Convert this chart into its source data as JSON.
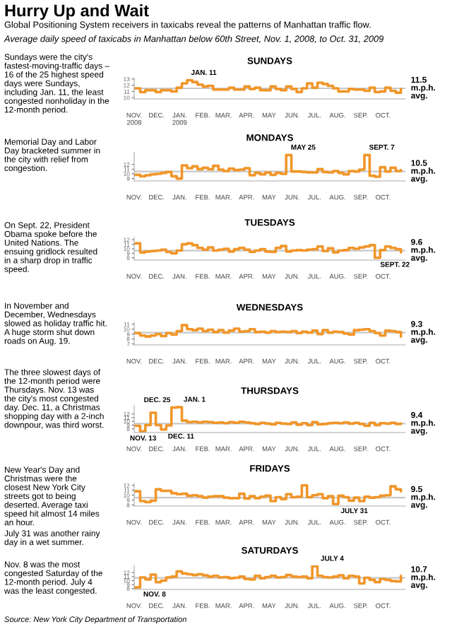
{
  "chart_data": [
    {
      "type": "other",
      "title": "Hurry Up and Wait",
      "subtitle": "Global Positioning System receivers in taxicabs reveal the patterns of Manhattan traffic flow.",
      "annotations": [
        "Average daily speed of taxicabs in Manhattan below 60th Street, Nov. 1, 2008, to Oct. 31, 2009",
        "Source: New York City Department of Transportation"
      ]
    },
    {
      "type": "step",
      "title": "SUNDAYS",
      "xlim": [
        "2008-11-01",
        "2009-10-31"
      ],
      "ylim": [
        9.8,
        13.2
      ],
      "yticks": [
        10,
        11,
        12,
        13
      ],
      "xticks": [
        {
          "value": "2008-11-01",
          "label": "NOV.\n2008"
        },
        {
          "value": "2008-12-01",
          "label": "DEC."
        },
        {
          "value": "2009-01-01",
          "label": "JAN.\n2009"
        },
        {
          "value": "2009-02-01",
          "label": "FEB."
        },
        {
          "value": "2009-03-01",
          "label": "MAR."
        },
        {
          "value": "2009-04-01",
          "label": "APR."
        },
        {
          "value": "2009-05-01",
          "label": "MAY"
        },
        {
          "value": "2009-06-01",
          "label": "JUN."
        },
        {
          "value": "2009-07-01",
          "label": "JUL."
        },
        {
          "value": "2009-08-01",
          "label": "AUG."
        },
        {
          "value": "2009-09-01",
          "label": "SEP."
        },
        {
          "value": "2009-10-01",
          "label": "OCT."
        }
      ],
      "x": [
        "2008-11-02",
        "2008-11-09",
        "2008-11-16",
        "2008-11-23",
        "2008-11-30",
        "2008-12-07",
        "2008-12-14",
        "2008-12-21",
        "2008-12-28",
        "2009-01-04",
        "2009-01-11",
        "2009-01-18",
        "2009-01-25",
        "2009-02-01",
        "2009-02-08",
        "2009-02-15",
        "2009-02-22",
        "2009-03-01",
        "2009-03-08",
        "2009-03-15",
        "2009-03-22",
        "2009-03-29",
        "2009-04-05",
        "2009-04-12",
        "2009-04-19",
        "2009-04-26",
        "2009-05-03",
        "2009-05-10",
        "2009-05-17",
        "2009-05-24",
        "2009-05-31",
        "2009-06-07",
        "2009-06-14",
        "2009-06-21",
        "2009-06-28",
        "2009-07-05",
        "2009-07-12",
        "2009-07-19",
        "2009-07-26",
        "2009-08-02",
        "2009-08-09",
        "2009-08-16",
        "2009-08-23",
        "2009-08-30",
        "2009-09-06",
        "2009-09-13",
        "2009-09-20",
        "2009-09-27",
        "2009-10-04",
        "2009-10-11",
        "2009-10-18",
        "2009-10-25"
      ],
      "series": [
        {
          "color": "#f0962a",
          "values": [
            11.5,
            10.9,
            11.2,
            11.2,
            10.9,
            11.2,
            11.2,
            11.0,
            11.6,
            12.3,
            12.8,
            12.5,
            12.1,
            11.8,
            11.9,
            11.3,
            11.3,
            11.3,
            11.6,
            11.3,
            11.3,
            11.8,
            11.4,
            11.6,
            11.2,
            11.2,
            11.8,
            11.4,
            11.2,
            11.8,
            11.4,
            10.9,
            11.5,
            12.3,
            11.6,
            12.4,
            12.2,
            11.9,
            11.5,
            11.0,
            11.0,
            11.4,
            11.3,
            11.3,
            11.1,
            11.6,
            10.9,
            11.0,
            11.6,
            11.1,
            10.8,
            11.4
          ]
        }
      ],
      "ref_lines": [
        {
          "axis": "y",
          "value": 11.5,
          "label": "11.5\nm.p.h.\navg.",
          "color": "#c8c8c8"
        }
      ],
      "annotations": [
        {
          "text": "JAN. 11",
          "x": "2009-01-11",
          "y": 12.8
        },
        "Sundays were the city's\nfastest-moving-traffic days –\n16 of the 25 highest speed\ndays were Sundays,\nincluding Jan. 11, the least\ncongested nonholiday in the\n12-month period."
      ]
    },
    {
      "type": "step",
      "title": "MONDAYS",
      "xlim": [
        "2008-11-01",
        "2009-10-31"
      ],
      "ylim": [
        8.5,
        14.5
      ],
      "yticks": [
        9,
        10,
        11,
        12
      ],
      "xticks": [
        {
          "value": "2008-11-01",
          "label": "NOV."
        },
        {
          "value": "2008-12-01",
          "label": "DEC."
        },
        {
          "value": "2009-01-01",
          "label": "JAN."
        },
        {
          "value": "2009-02-01",
          "label": "FEB."
        },
        {
          "value": "2009-03-01",
          "label": "MAR."
        },
        {
          "value": "2009-04-01",
          "label": "APR."
        },
        {
          "value": "2009-05-01",
          "label": "MAY"
        },
        {
          "value": "2009-06-01",
          "label": "JUN."
        },
        {
          "value": "2009-07-01",
          "label": "JUL."
        },
        {
          "value": "2009-08-01",
          "label": "AUG."
        },
        {
          "value": "2009-09-01",
          "label": "SEP."
        },
        {
          "value": "2009-10-01",
          "label": "OCT."
        }
      ],
      "x": [
        "2008-11-02",
        "2008-11-09",
        "2008-11-16",
        "2008-11-23",
        "2008-11-30",
        "2008-12-07",
        "2008-12-14",
        "2008-12-21",
        "2008-12-28",
        "2009-01-04",
        "2009-01-11",
        "2009-01-18",
        "2009-01-25",
        "2009-02-01",
        "2009-02-08",
        "2009-02-15",
        "2009-02-22",
        "2009-03-01",
        "2009-03-08",
        "2009-03-15",
        "2009-03-22",
        "2009-03-29",
        "2009-04-05",
        "2009-04-12",
        "2009-04-19",
        "2009-04-26",
        "2009-05-03",
        "2009-05-10",
        "2009-05-17",
        "2009-05-24",
        "2009-05-31",
        "2009-06-07",
        "2009-06-14",
        "2009-06-21",
        "2009-06-28",
        "2009-07-05",
        "2009-07-12",
        "2009-07-19",
        "2009-07-26",
        "2009-08-02",
        "2009-08-09",
        "2009-08-16",
        "2009-08-23",
        "2009-08-30",
        "2009-09-06",
        "2009-09-13",
        "2009-09-20",
        "2009-09-27",
        "2009-10-04",
        "2009-10-11",
        "2009-10-18",
        "2009-10-25"
      ],
      "series": [
        {
          "color": "#f0962a",
          "values": [
            9.8,
            9.5,
            9.7,
            9.9,
            10.0,
            10.2,
            10.4,
            9.5,
            9.0,
            11.8,
            11.2,
            11.6,
            11.0,
            11.3,
            11.0,
            11.7,
            10.9,
            10.6,
            11.1,
            10.8,
            10.9,
            11.2,
            9.7,
            10.2,
            9.9,
            10.3,
            9.8,
            10.2,
            10.0,
            14.0,
            10.5,
            10.5,
            10.4,
            10.3,
            10.3,
            11.0,
            10.4,
            10.3,
            10.6,
            10.2,
            9.9,
            10.6,
            10.5,
            10.9,
            14.0,
            9.6,
            9.4,
            11.4,
            10.5,
            11.3,
            10.6,
            10.8
          ]
        }
      ],
      "ref_lines": [
        {
          "axis": "y",
          "value": 10.5,
          "label": "10.5\nm.p.h.\navg.",
          "color": "#c8c8c8"
        }
      ],
      "annotations": [
        {
          "text": "MAY 25",
          "x": "2009-05-25",
          "y": 14.0
        },
        {
          "text": "SEPT. 7",
          "x": "2009-09-07",
          "y": 14.0
        },
        "Memorial Day and Labor\nDay bracketed summer in\nthe city with relief from\ncongestion."
      ]
    },
    {
      "type": "step",
      "title": "TUESDAYS",
      "xlim": [
        "2008-11-01",
        "2009-10-31"
      ],
      "ylim": [
        7.5,
        12.5
      ],
      "yticks": [
        8,
        9,
        10,
        11,
        12
      ],
      "xticks": [
        {
          "value": "2008-11-01",
          "label": "NOV."
        },
        {
          "value": "2008-12-01",
          "label": "DEC."
        },
        {
          "value": "2009-01-01",
          "label": "JAN."
        },
        {
          "value": "2009-02-01",
          "label": "FEB."
        },
        {
          "value": "2009-03-01",
          "label": "MAR."
        },
        {
          "value": "2009-04-01",
          "label": "APR."
        },
        {
          "value": "2009-05-01",
          "label": "MAY"
        },
        {
          "value": "2009-06-01",
          "label": "JUN."
        },
        {
          "value": "2009-07-01",
          "label": "JUL."
        },
        {
          "value": "2009-08-01",
          "label": "AUG."
        },
        {
          "value": "2009-09-01",
          "label": "SEP."
        },
        {
          "value": "2009-10-01",
          "label": "OCT."
        }
      ],
      "x": [
        "2008-11-02",
        "2008-11-09",
        "2008-11-16",
        "2008-11-23",
        "2008-11-30",
        "2008-12-07",
        "2008-12-14",
        "2008-12-21",
        "2008-12-28",
        "2009-01-04",
        "2009-01-11",
        "2009-01-18",
        "2009-01-25",
        "2009-02-01",
        "2009-02-08",
        "2009-02-15",
        "2009-02-22",
        "2009-03-01",
        "2009-03-08",
        "2009-03-15",
        "2009-03-22",
        "2009-03-29",
        "2009-04-05",
        "2009-04-12",
        "2009-04-19",
        "2009-04-26",
        "2009-05-03",
        "2009-05-10",
        "2009-05-17",
        "2009-05-24",
        "2009-05-31",
        "2009-06-07",
        "2009-06-14",
        "2009-06-21",
        "2009-06-28",
        "2009-07-05",
        "2009-07-12",
        "2009-07-19",
        "2009-07-26",
        "2009-08-02",
        "2009-08-09",
        "2009-08-16",
        "2009-08-23",
        "2009-08-30",
        "2009-09-06",
        "2009-09-13",
        "2009-09-20",
        "2009-09-27",
        "2009-10-04",
        "2009-10-11",
        "2009-10-18",
        "2009-10-25"
      ],
      "series": [
        {
          "color": "#f0962a",
          "values": [
            11.2,
            9.2,
            9.4,
            9.5,
            9.6,
            9.8,
            9.3,
            9.0,
            9.6,
            11.0,
            11.2,
            10.8,
            10.2,
            9.8,
            10.3,
            9.6,
            9.8,
            10.0,
            9.4,
            9.9,
            10.2,
            9.8,
            9.3,
            9.6,
            9.9,
            9.4,
            9.3,
            10.2,
            10.6,
            9.4,
            9.6,
            9.7,
            9.6,
            9.8,
            9.9,
            10.5,
            9.5,
            10.1,
            9.2,
            9.6,
            9.7,
            10.2,
            10.0,
            10.3,
            10.5,
            10.8,
            8.0,
            9.7,
            10.5,
            10.2,
            9.9,
            9.2
          ]
        }
      ],
      "ref_lines": [
        {
          "axis": "y",
          "value": 9.6,
          "label": "9.6\nm.p.h.\navg.",
          "color": "#c8c8c8"
        }
      ],
      "annotations": [
        {
          "text": "SEPT. 22",
          "x": "2009-09-22",
          "y": 8.0
        },
        "On Sept. 22, President\nObama spoke before the\nUnited Nations. The\nensuing gridlock resulted\nin a sharp drop in traffic\nspeed."
      ]
    },
    {
      "type": "step",
      "title": "WEDNESDAYS",
      "xlim": [
        "2008-11-01",
        "2009-10-31"
      ],
      "ylim": [
        6.8,
        11.4
      ],
      "yticks": [
        7,
        8,
        9,
        10,
        11
      ],
      "xticks": [
        {
          "value": "2008-11-01",
          "label": "NOV."
        },
        {
          "value": "2008-12-01",
          "label": "DEC."
        },
        {
          "value": "2009-01-01",
          "label": "JAN."
        },
        {
          "value": "2009-02-01",
          "label": "FEB."
        },
        {
          "value": "2009-03-01",
          "label": "MAR."
        },
        {
          "value": "2009-04-01",
          "label": "APR."
        },
        {
          "value": "2009-05-01",
          "label": "MAY"
        },
        {
          "value": "2009-06-01",
          "label": "JUN."
        },
        {
          "value": "2009-07-01",
          "label": "JUL."
        },
        {
          "value": "2009-08-01",
          "label": "AUG."
        },
        {
          "value": "2009-09-01",
          "label": "SEP."
        },
        {
          "value": "2009-10-01",
          "label": "OCT."
        }
      ],
      "x": [
        "2008-11-02",
        "2008-11-09",
        "2008-11-16",
        "2008-11-23",
        "2008-11-30",
        "2008-12-07",
        "2008-12-14",
        "2008-12-21",
        "2008-12-28",
        "2009-01-04",
        "2009-01-11",
        "2009-01-18",
        "2009-01-25",
        "2009-02-01",
        "2009-02-08",
        "2009-02-15",
        "2009-02-22",
        "2009-03-01",
        "2009-03-08",
        "2009-03-15",
        "2009-03-22",
        "2009-03-29",
        "2009-04-05",
        "2009-04-12",
        "2009-04-19",
        "2009-04-26",
        "2009-05-03",
        "2009-05-10",
        "2009-05-17",
        "2009-05-24",
        "2009-05-31",
        "2009-06-07",
        "2009-06-14",
        "2009-06-21",
        "2009-06-28",
        "2009-07-05",
        "2009-07-12",
        "2009-07-19",
        "2009-07-26",
        "2009-08-02",
        "2009-08-09",
        "2009-08-16",
        "2009-08-23",
        "2009-08-30",
        "2009-09-06",
        "2009-09-13",
        "2009-09-20",
        "2009-09-27",
        "2009-10-04",
        "2009-10-11",
        "2009-10-18",
        "2009-10-25"
      ],
      "series": [
        {
          "color": "#f0962a",
          "values": [
            9.2,
            8.7,
            8.5,
            8.7,
            9.0,
            8.6,
            9.2,
            8.9,
            9.6,
            10.8,
            10.0,
            9.8,
            10.1,
            9.6,
            9.9,
            9.4,
            9.8,
            9.3,
            9.7,
            10.1,
            9.5,
            9.6,
            10.0,
            9.4,
            9.5,
            9.3,
            9.6,
            9.4,
            9.5,
            9.4,
            9.6,
            9.2,
            9.5,
            9.3,
            9.7,
            9.0,
            9.8,
            9.3,
            9.5,
            9.4,
            9.1,
            8.9,
            9.8,
            9.9,
            10.0,
            9.6,
            9.2,
            8.7,
            9.7,
            9.6,
            9.4,
            8.5
          ]
        }
      ],
      "ref_lines": [
        {
          "axis": "y",
          "value": 9.3,
          "label": "9.3\nm.p.h.\navg.",
          "color": "#c8c8c8"
        }
      ],
      "annotations": [
        "In November and\nDecember, Wednesdays\nslowed as holiday traffic hit.\nA huge storm shut down\nroads on Aug. 19."
      ]
    },
    {
      "type": "step",
      "title": "THURSDAYS",
      "xlim": [
        "2008-11-01",
        "2009-10-31"
      ],
      "ylim": [
        7.0,
        14.2
      ],
      "yticks": [
        8,
        9,
        10,
        11,
        12
      ],
      "xticks": [
        {
          "value": "2008-11-01",
          "label": "NOV."
        },
        {
          "value": "2008-12-01",
          "label": "DEC."
        },
        {
          "value": "2009-01-01",
          "label": "JAN."
        },
        {
          "value": "2009-02-01",
          "label": "FEB."
        },
        {
          "value": "2009-03-01",
          "label": "MAR."
        },
        {
          "value": "2009-04-01",
          "label": "APR."
        },
        {
          "value": "2009-05-01",
          "label": "MAY"
        },
        {
          "value": "2009-06-01",
          "label": "JUN."
        },
        {
          "value": "2009-07-01",
          "label": "JUL."
        },
        {
          "value": "2009-08-01",
          "label": "AUG."
        },
        {
          "value": "2009-09-01",
          "label": "SEP."
        },
        {
          "value": "2009-10-01",
          "label": "OCT."
        }
      ],
      "x": [
        "2008-11-02",
        "2008-11-09",
        "2008-11-16",
        "2008-11-23",
        "2008-11-30",
        "2008-12-07",
        "2008-12-14",
        "2008-12-21",
        "2008-12-28",
        "2009-01-04",
        "2009-01-11",
        "2009-01-18",
        "2009-01-25",
        "2009-02-01",
        "2009-02-08",
        "2009-02-15",
        "2009-02-22",
        "2009-03-01",
        "2009-03-08",
        "2009-03-15",
        "2009-03-22",
        "2009-03-29",
        "2009-04-05",
        "2009-04-12",
        "2009-04-19",
        "2009-04-26",
        "2009-05-03",
        "2009-05-10",
        "2009-05-17",
        "2009-05-24",
        "2009-05-31",
        "2009-06-07",
        "2009-06-14",
        "2009-06-21",
        "2009-06-28",
        "2009-07-05",
        "2009-07-12",
        "2009-07-19",
        "2009-07-26",
        "2009-08-02",
        "2009-08-09",
        "2009-08-16",
        "2009-08-23",
        "2009-08-30",
        "2009-09-06",
        "2009-09-13",
        "2009-09-20",
        "2009-09-27",
        "2009-10-04",
        "2009-10-11",
        "2009-10-18",
        "2009-10-25"
      ],
      "series": [
        {
          "color": "#f0962a",
          "values": [
            8.8,
            7.3,
            9.0,
            12.3,
            9.0,
            7.8,
            8.9,
            13.7,
            13.8,
            10.2,
            9.8,
            9.9,
            9.7,
            9.9,
            9.8,
            9.6,
            9.7,
            9.5,
            9.8,
            9.6,
            9.9,
            9.7,
            9.5,
            9.3,
            9.6,
            9.4,
            9.2,
            9.6,
            9.4,
            9.3,
            9.7,
            9.1,
            9.5,
            9.0,
            9.8,
            9.2,
            9.3,
            9.5,
            9.6,
            9.5,
            9.7,
            9.4,
            9.6,
            9.3,
            8.8,
            9.6,
            9.0,
            9.5,
            9.4,
            9.6,
            9.3,
            9.4
          ]
        }
      ],
      "ref_lines": [
        {
          "axis": "y",
          "value": 9.4,
          "label": "9.4\nm.p.h.\navg.",
          "color": "#c8c8c8"
        }
      ],
      "annotations": [
        {
          "text": "DEC. 25",
          "x": "2008-12-25",
          "y": 13.7
        },
        {
          "text": "JAN. 1",
          "x": "2009-01-01",
          "y": 13.8
        },
        {
          "text": "NOV. 13",
          "x": "2008-11-13",
          "y": 7.3
        },
        {
          "text": "DEC. 11",
          "x": "2008-12-11",
          "y": 7.8
        },
        "The three slowest days of\nthe 12-month period were\nThursdays. Nov. 13 was\nthe city's most congested\nday. Dec. 11, a Christmas\nshopping day with a 2-inch\ndownpour, was third worst."
      ]
    },
    {
      "type": "step",
      "title": "FRIDAYS",
      "xlim": [
        "2008-11-01",
        "2009-10-31"
      ],
      "ylim": [
        7.8,
        12.4
      ],
      "yticks": [
        8,
        9,
        10,
        11,
        12
      ],
      "xticks": [
        {
          "value": "2008-11-01",
          "label": "NOV."
        },
        {
          "value": "2008-12-01",
          "label": "DEC."
        },
        {
          "value": "2009-01-01",
          "label": "JAN."
        },
        {
          "value": "2009-02-01",
          "label": "FEB."
        },
        {
          "value": "2009-03-01",
          "label": "MAR."
        },
        {
          "value": "2009-04-01",
          "label": "APR."
        },
        {
          "value": "2009-05-01",
          "label": "MAY"
        },
        {
          "value": "2009-06-01",
          "label": "JUN."
        },
        {
          "value": "2009-07-01",
          "label": "JUL."
        },
        {
          "value": "2009-08-01",
          "label": "AUG."
        },
        {
          "value": "2009-09-01",
          "label": "SEP."
        },
        {
          "value": "2009-10-01",
          "label": "OCT."
        }
      ],
      "x": [
        "2008-11-02",
        "2008-11-09",
        "2008-11-16",
        "2008-11-23",
        "2008-11-30",
        "2008-12-07",
        "2008-12-14",
        "2008-12-21",
        "2008-12-28",
        "2009-01-04",
        "2009-01-11",
        "2009-01-18",
        "2009-01-25",
        "2009-02-01",
        "2009-02-08",
        "2009-02-15",
        "2009-02-22",
        "2009-03-01",
        "2009-03-08",
        "2009-03-15",
        "2009-03-22",
        "2009-03-29",
        "2009-04-05",
        "2009-04-12",
        "2009-04-19",
        "2009-04-26",
        "2009-05-03",
        "2009-05-10",
        "2009-05-17",
        "2009-05-24",
        "2009-05-31",
        "2009-06-07",
        "2009-06-14",
        "2009-06-21",
        "2009-06-28",
        "2009-07-05",
        "2009-07-12",
        "2009-07-19",
        "2009-07-26",
        "2009-08-02",
        "2009-08-09",
        "2009-08-16",
        "2009-08-23",
        "2009-08-30",
        "2009-09-06",
        "2009-09-13",
        "2009-09-20",
        "2009-09-27",
        "2009-10-04",
        "2009-10-11",
        "2009-10-18",
        "2009-10-25"
      ],
      "series": [
        {
          "color": "#f0962a",
          "values": [
            10.8,
            8.8,
            8.6,
            8.9,
            11.2,
            10.9,
            10.9,
            10.4,
            10.2,
            10.3,
            9.9,
            10.0,
            9.8,
            9.5,
            9.7,
            9.8,
            9.8,
            9.5,
            9.4,
            9.4,
            10.3,
            9.3,
            9.8,
            9.4,
            9.7,
            9.9,
            8.8,
            9.6,
            9.2,
            10.2,
            9.6,
            9.7,
            12.0,
            9.6,
            10.0,
            10.2,
            9.4,
            9.8,
            8.2,
            9.9,
            9.6,
            8.9,
            9.5,
            8.8,
            9.7,
            9.5,
            9.6,
            9.9,
            10.0,
            11.8,
            11.2,
            10.8
          ]
        }
      ],
      "ref_lines": [
        {
          "axis": "y",
          "value": 9.5,
          "label": "9.5\nm.p.h.\navg.",
          "color": "#c8c8c8"
        }
      ],
      "annotations": [
        {
          "text": "JULY 31",
          "x": "2009-07-31",
          "y": 8.2
        },
        "New Year's Day and\nChristmas were the\nclosest New York City\nstreets got to being\ndeserted. Average taxi\nspeed hit almost 14 miles\nan hour.",
        "July 31 was another rainy\nday in a wet summer."
      ]
    },
    {
      "type": "step",
      "title": "SATURDAYS",
      "xlim": [
        "2008-11-01",
        "2009-10-31"
      ],
      "ylim": [
        7.8,
        13.8
      ],
      "yticks": [
        8,
        9,
        10,
        11,
        12
      ],
      "xticks": [
        {
          "value": "2008-11-01",
          "label": "NOV."
        },
        {
          "value": "2008-12-01",
          "label": "DEC."
        },
        {
          "value": "2009-01-01",
          "label": "JAN."
        },
        {
          "value": "2009-02-01",
          "label": "FEB."
        },
        {
          "value": "2009-03-01",
          "label": "MAR."
        },
        {
          "value": "2009-04-01",
          "label": "APR."
        },
        {
          "value": "2009-05-01",
          "label": "MAY"
        },
        {
          "value": "2009-06-01",
          "label": "JUN."
        },
        {
          "value": "2009-07-01",
          "label": "JUL."
        },
        {
          "value": "2009-08-01",
          "label": "AUG."
        },
        {
          "value": "2009-09-01",
          "label": "SEP."
        },
        {
          "value": "2009-10-01",
          "label": "OCT."
        }
      ],
      "x": [
        "2008-11-02",
        "2008-11-09",
        "2008-11-16",
        "2008-11-23",
        "2008-11-30",
        "2008-12-07",
        "2008-12-14",
        "2008-12-21",
        "2008-12-28",
        "2009-01-04",
        "2009-01-11",
        "2009-01-18",
        "2009-01-25",
        "2009-02-01",
        "2009-02-08",
        "2009-02-15",
        "2009-02-22",
        "2009-03-01",
        "2009-03-08",
        "2009-03-15",
        "2009-03-22",
        "2009-03-29",
        "2009-04-05",
        "2009-04-12",
        "2009-04-19",
        "2009-04-26",
        "2009-05-03",
        "2009-05-10",
        "2009-05-17",
        "2009-05-24",
        "2009-05-31",
        "2009-06-07",
        "2009-06-14",
        "2009-06-21",
        "2009-06-28",
        "2009-07-05",
        "2009-07-12",
        "2009-07-19",
        "2009-07-26",
        "2009-08-02",
        "2009-08-09",
        "2009-08-16",
        "2009-08-23",
        "2009-08-30",
        "2009-09-06",
        "2009-09-13",
        "2009-09-20",
        "2009-09-27",
        "2009-10-04",
        "2009-10-11",
        "2009-10-18",
        "2009-10-25"
      ],
      "series": [
        {
          "color": "#f0962a",
          "values": [
            8.3,
            10.8,
            10.3,
            11.5,
            9.6,
            10.0,
            10.8,
            11.0,
            12.3,
            11.8,
            11.6,
            11.4,
            11.6,
            11.3,
            11.0,
            11.2,
            10.8,
            10.9,
            10.6,
            10.7,
            11.0,
            10.4,
            10.3,
            11.2,
            10.6,
            10.9,
            11.2,
            10.8,
            10.9,
            11.4,
            11.0,
            10.9,
            11.0,
            10.6,
            13.6,
            11.2,
            10.9,
            10.8,
            11.0,
            11.3,
            10.6,
            11.2,
            11.0,
            9.3,
            10.7,
            10.2,
            9.6,
            10.4,
            10.2,
            9.9,
            9.8,
            11.2
          ]
        }
      ],
      "ref_lines": [
        {
          "axis": "y",
          "value": 10.7,
          "label": "10.7\nm.p.h.\navg.",
          "color": "#c8c8c8"
        }
      ],
      "annotations": [
        {
          "text": "NOV. 8",
          "x": "2008-11-08",
          "y": 8.3
        },
        {
          "text": "JULY 4",
          "x": "2009-07-04",
          "y": 13.6
        },
        "Nov. 8 was the most\ncongested Saturday of the\n12-month period. July 4\nwas the least congested."
      ]
    }
  ]
}
